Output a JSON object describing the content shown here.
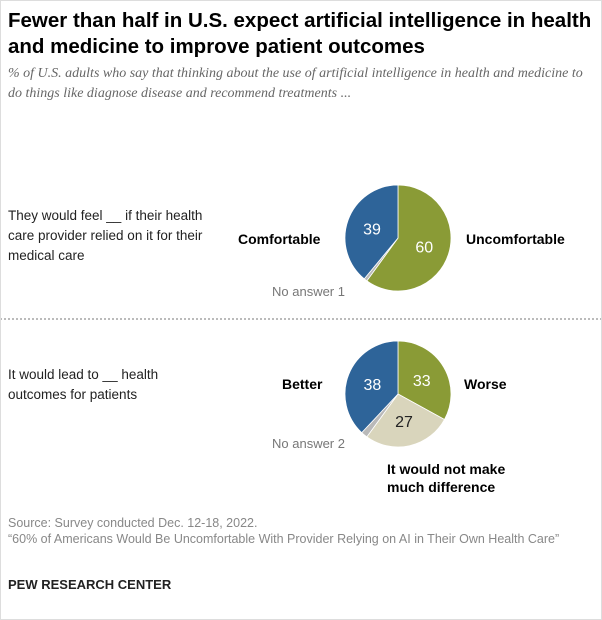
{
  "title": "Fewer than half in U.S. expect artificial intelligence in health and medicine to improve patient outcomes",
  "subtitle": "% of U.S. adults who say that thinking about the use of artificial intelligence in health and medicine to do things like diagnose disease and recommend treatments ...",
  "source": "Source: Survey conducted Dec. 12-18, 2022.",
  "report": "“60% of Americans Would Be Uncomfortable With Provider Relying on AI in Their Own Health Care”",
  "org": "PEW RESEARCH CENTER",
  "colors": {
    "blue": "#2e6499",
    "green": "#8a9b36",
    "tan": "#d9d5bc",
    "gray": "#b9b9b9"
  },
  "chart_data": [
    {
      "type": "pie",
      "question": "They would feel __ if their health care provider relied on it for their medical care",
      "slices": [
        {
          "label": "Uncomfortable",
          "value": 60,
          "color": "#8a9b36"
        },
        {
          "label": "No answer",
          "value": 1,
          "color": "#b9b9b9"
        },
        {
          "label": "Comfortable",
          "value": 39,
          "color": "#2e6499"
        }
      ],
      "na_label": "No answer 1"
    },
    {
      "type": "pie",
      "question": "It would lead to __ health outcomes for patients",
      "slices": [
        {
          "label": "Worse",
          "value": 33,
          "color": "#8a9b36"
        },
        {
          "label": "It would not make much difference",
          "value": 27,
          "color": "#d9d5bc"
        },
        {
          "label": "No answer",
          "value": 2,
          "color": "#b9b9b9"
        },
        {
          "label": "Better",
          "value": 38,
          "color": "#2e6499"
        }
      ],
      "na_label": "No answer 2"
    }
  ]
}
